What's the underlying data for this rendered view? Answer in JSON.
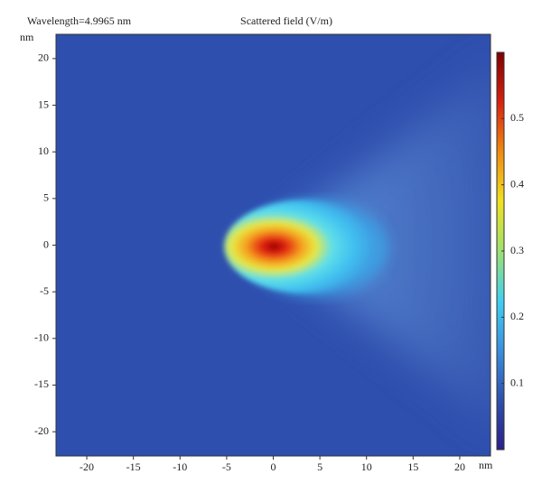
{
  "chart_data": {
    "type": "heatmap",
    "title": "Scattered field (V/m)",
    "subtitle": "Wavelength=4.9965 nm",
    "xlabel": "nm",
    "ylabel": "nm",
    "xlim": [
      -23.3,
      23.3
    ],
    "ylim": [
      -22.6,
      22.6
    ],
    "xticks": [
      -20,
      -15,
      -10,
      -5,
      0,
      5,
      10,
      15,
      20
    ],
    "yticks": [
      -20,
      -15,
      -10,
      -5,
      0,
      5,
      10,
      15,
      20
    ],
    "clim": [
      0,
      0.6
    ],
    "cticks": [
      0.1,
      0.2,
      0.3,
      0.4,
      0.5
    ],
    "colormap": [
      "#2b1f8c",
      "#2f4fae",
      "#3a8fe0",
      "#40d0f0",
      "#9fe070",
      "#f0e020",
      "#f08a10",
      "#d82010",
      "#800000"
    ]
  }
}
